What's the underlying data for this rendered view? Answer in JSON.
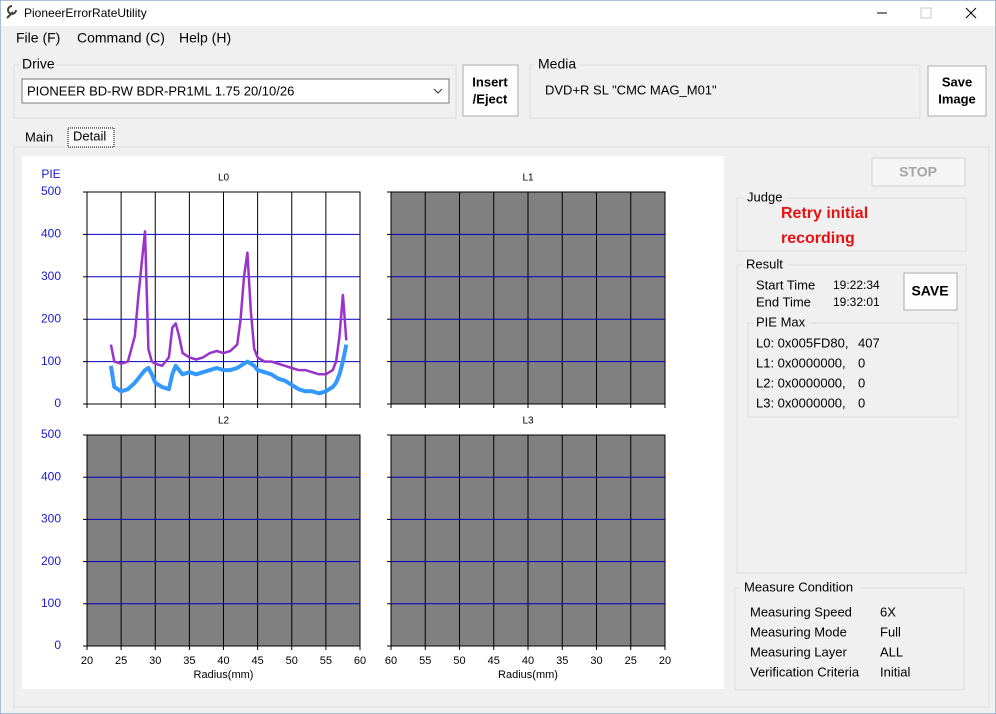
{
  "window": {
    "title": "PioneerErrorRateUtility"
  },
  "menu": [
    "File (F)",
    "Command (C)",
    "Help (H)"
  ],
  "drive": {
    "label": "Drive",
    "selected": "PIONEER BD-RW BDR-PR1ML 1.75 20/10/26",
    "button": [
      "Insert",
      "/Eject"
    ]
  },
  "media": {
    "label": "Media",
    "value": "DVD+R SL \"CMC MAG_M01\"",
    "button": [
      "Save",
      "Image"
    ]
  },
  "tabs": [
    "Main",
    "Detail"
  ],
  "stop_button": "STOP",
  "judge": {
    "label": "Judge",
    "lines": [
      "Retry initial",
      "recording"
    ]
  },
  "result": {
    "label": "Result",
    "start_label": "Start Time",
    "start": "19:22:34",
    "end_label": "End Time",
    "end": "19:32:01",
    "save_button": "SAVE",
    "pie_max_label": "PIE Max",
    "pie_max": [
      [
        "L0: 0x005FD80,",
        407
      ],
      [
        "L1: 0x0000000,",
        0
      ],
      [
        "L2: 0x0000000,",
        0
      ],
      [
        "L3: 0x0000000,",
        0
      ]
    ]
  },
  "measure": {
    "label": "Measure Condition",
    "rows": [
      [
        "Measuring Speed",
        "6X"
      ],
      [
        "Measuring Mode",
        "Full"
      ],
      [
        "Measuring Layer",
        "ALL"
      ],
      [
        "Verification Criteria",
        "Initial"
      ]
    ]
  },
  "chart_data": [
    {
      "type": "line",
      "title": "L0",
      "y_label": "PIE",
      "background": "#ffffff",
      "xgrid_color": "#000000",
      "ygrid_color": "#0000c0",
      "xlim": [
        20,
        60
      ],
      "xticks": [
        20,
        25,
        30,
        35,
        40,
        45,
        50,
        55,
        60
      ],
      "show_xtick_labels": false,
      "ylim": [
        0,
        500
      ],
      "yticks": [
        0,
        100,
        200,
        300,
        400,
        500
      ],
      "show_ytick_labels": true,
      "x": [
        23.5,
        24,
        25,
        26,
        27,
        27.5,
        28,
        28.5,
        29,
        29.5,
        30,
        31,
        32,
        32.5,
        33,
        33.5,
        34,
        35,
        36,
        37,
        38,
        39,
        40,
        41,
        42,
        42.5,
        43,
        43.5,
        44,
        44.5,
        45,
        46,
        47,
        48,
        49,
        50,
        51,
        52,
        53,
        54,
        55,
        56,
        56.5,
        57,
        57.5,
        58
      ],
      "series": [
        {
          "color": "#9933cc",
          "values": [
            140,
            100,
            95,
            100,
            160,
            250,
            330,
            407,
            130,
            100,
            95,
            90,
            110,
            180,
            190,
            160,
            120,
            110,
            105,
            110,
            120,
            125,
            120,
            125,
            140,
            200,
            300,
            357,
            220,
            130,
            110,
            100,
            100,
            95,
            90,
            85,
            80,
            80,
            75,
            70,
            70,
            80,
            100,
            160,
            257,
            150
          ]
        },
        {
          "color": "#3399ff",
          "values": [
            90,
            40,
            30,
            35,
            50,
            60,
            70,
            80,
            85,
            70,
            50,
            40,
            35,
            70,
            90,
            80,
            70,
            75,
            70,
            75,
            80,
            85,
            80,
            80,
            85,
            90,
            95,
            100,
            95,
            90,
            80,
            75,
            70,
            60,
            55,
            45,
            35,
            30,
            30,
            25,
            30,
            40,
            50,
            70,
            100,
            140
          ]
        }
      ]
    },
    {
      "type": "line",
      "title": "L1",
      "background": "#808080",
      "xgrid_color": "#000000",
      "ygrid_color": "#0000c0",
      "xlim": [
        60,
        20
      ],
      "xticks": [
        60,
        55,
        50,
        45,
        40,
        35,
        30,
        25,
        20
      ],
      "show_xtick_labels": false,
      "ylim": [
        0,
        500
      ],
      "yticks": [
        0,
        100,
        200,
        300,
        400,
        500
      ],
      "show_ytick_labels": false,
      "series": []
    },
    {
      "type": "line",
      "title": "L2",
      "x_label": "Radius(mm)",
      "background": "#808080",
      "xgrid_color": "#000000",
      "ygrid_color": "#0000c0",
      "xlim": [
        20,
        60
      ],
      "xticks": [
        20,
        25,
        30,
        35,
        40,
        45,
        50,
        55,
        60
      ],
      "show_xtick_labels": true,
      "ylim": [
        0,
        500
      ],
      "yticks": [
        0,
        100,
        200,
        300,
        400,
        500
      ],
      "show_ytick_labels": true,
      "series": []
    },
    {
      "type": "line",
      "title": "L3",
      "x_label": "Radius(mm)",
      "background": "#808080",
      "xgrid_color": "#000000",
      "ygrid_color": "#0000c0",
      "xlim": [
        60,
        20
      ],
      "xticks": [
        60,
        55,
        50,
        45,
        40,
        35,
        30,
        25,
        20
      ],
      "show_xtick_labels": true,
      "ylim": [
        0,
        500
      ],
      "yticks": [
        0,
        100,
        200,
        300,
        400,
        500
      ],
      "show_ytick_labels": false,
      "series": []
    }
  ]
}
